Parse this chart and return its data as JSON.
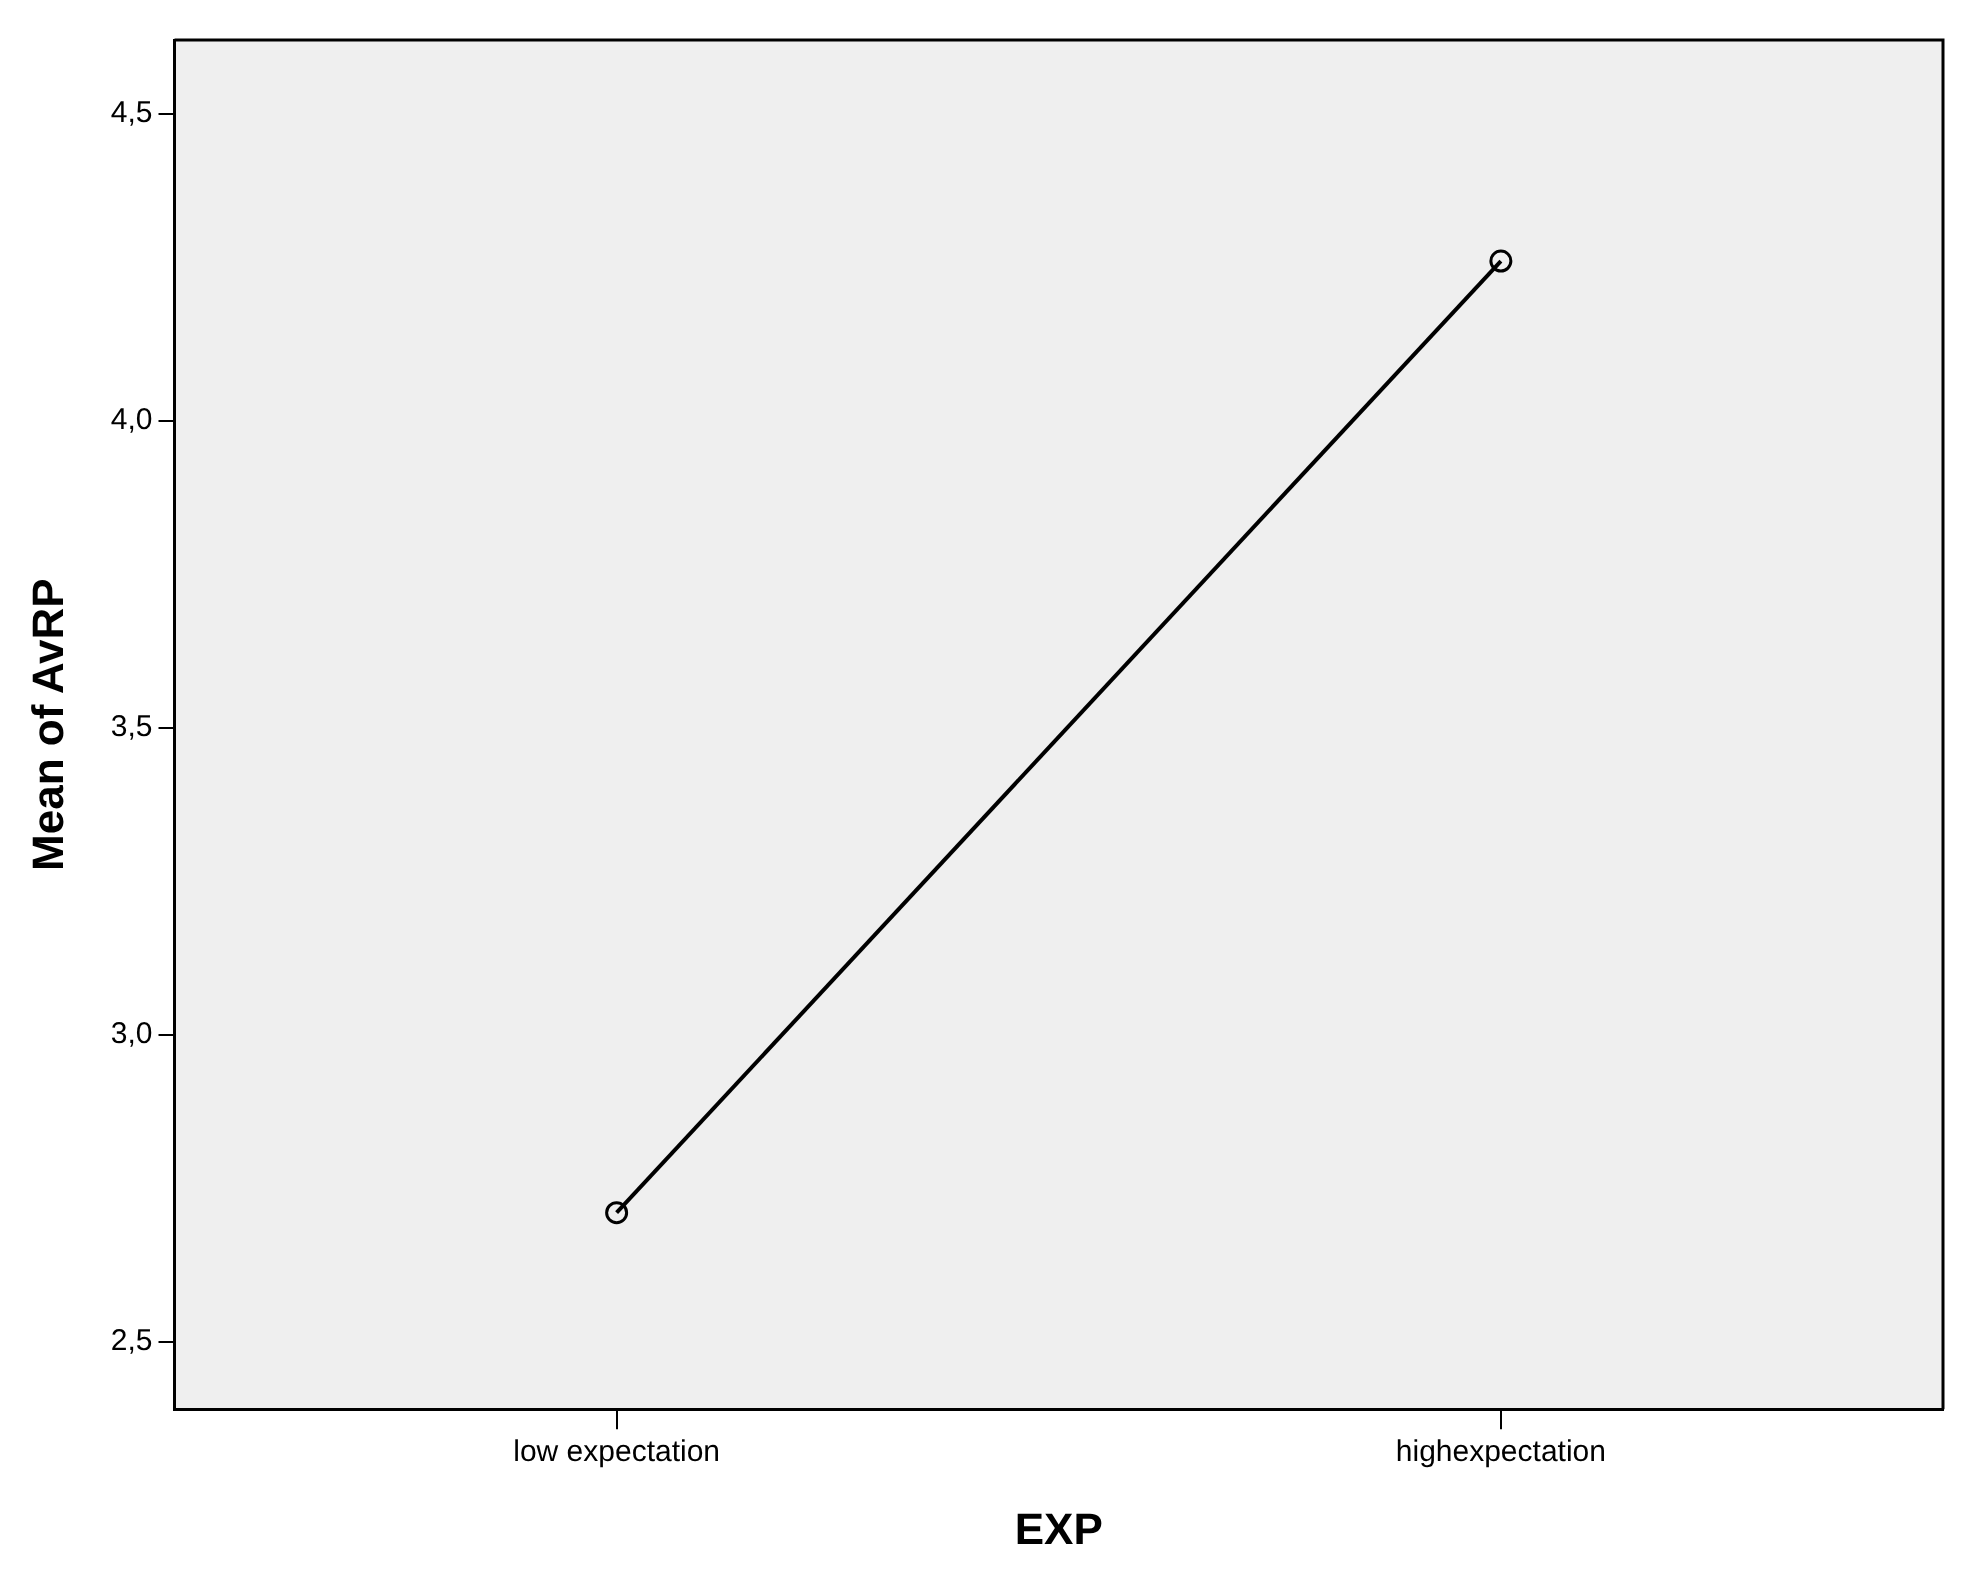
{
  "chart_data": {
    "type": "line",
    "xlabel": "EXP",
    "ylabel": "Mean of AvRP",
    "categories": [
      "low expectation",
      "highexpectation"
    ],
    "series": [
      {
        "color": "#000000",
        "values": [
          2.71,
          4.26
        ]
      }
    ],
    "ylim": [
      2.39,
      4.62
    ],
    "yticks": [
      {
        "value": 2.5,
        "label": "2,5"
      },
      {
        "value": 3.0,
        "label": "3,0"
      },
      {
        "value": 3.5,
        "label": "3,5"
      },
      {
        "value": 4.0,
        "label": "4,0"
      },
      {
        "value": 4.5,
        "label": "4,5"
      }
    ],
    "grid": false,
    "legend": false,
    "marker": "circle",
    "line_style": "solid"
  }
}
